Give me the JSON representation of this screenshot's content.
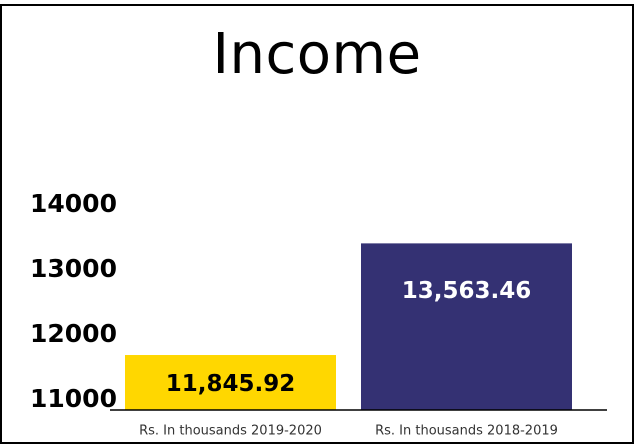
{
  "chart_data": {
    "type": "bar",
    "title": "Income",
    "categories": [
      "Rs. In thousands 2019-2020",
      "Rs. In thousands 2018-2019"
    ],
    "values": [
      11845.92,
      13563.46
    ],
    "value_labels": [
      "11,845.92",
      "13,563.46"
    ],
    "bar_colors": [
      "#FFD700",
      "#343173"
    ],
    "label_colors": [
      "#000000",
      "#FFFFFF"
    ],
    "yticks": [
      11000,
      12000,
      13000,
      14000
    ],
    "ytick_labels": [
      "11000",
      "12000",
      "13000",
      "14000"
    ],
    "ylim": [
      11000,
      14000
    ],
    "xlabel": "",
    "ylabel": "",
    "grid": false,
    "legend": "none"
  }
}
